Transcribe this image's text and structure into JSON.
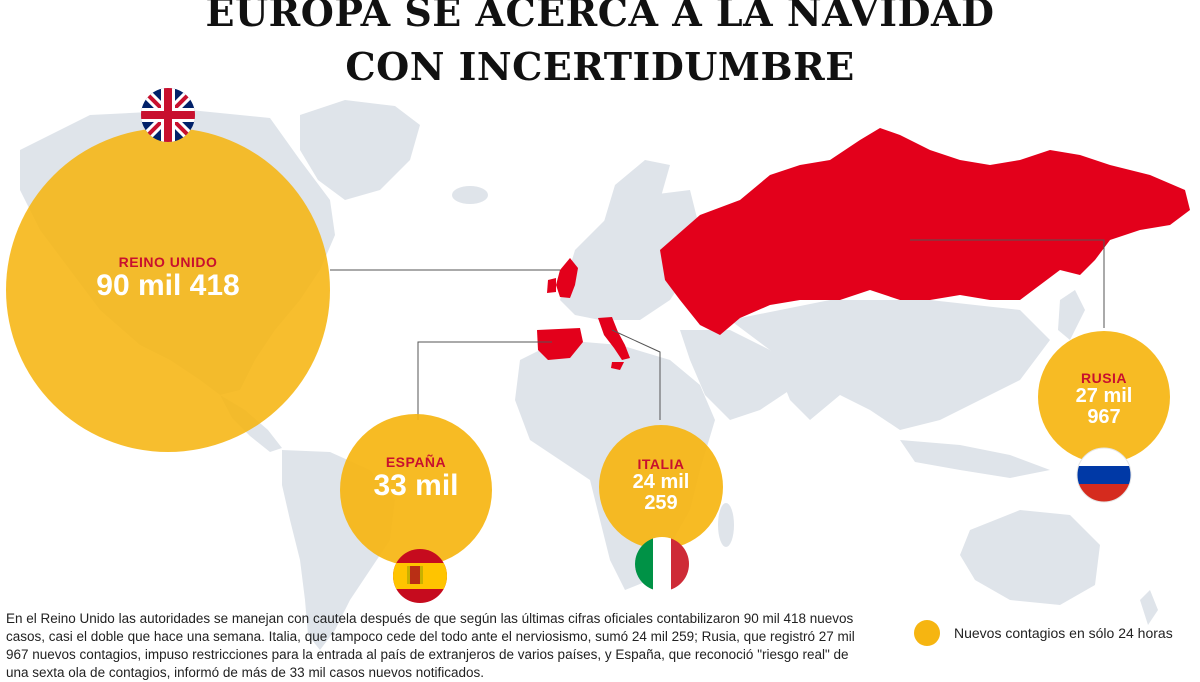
{
  "title_line1": "EUROPA SE ACERCA A LA NAVIDAD",
  "title_line2": "CON INCERTIDUMBRE",
  "colors": {
    "bubble": "#f6b511",
    "highlight": "#e3001b",
    "land": "#dfe4ea",
    "label": "#c8102e"
  },
  "bubbles": {
    "uk": {
      "country": "REINO UNIDO",
      "value": "90 mil 418",
      "flag": "uk-flag-icon"
    },
    "spain": {
      "country": "ESPAÑA",
      "value": "33 mil",
      "flag": "spain-flag-icon"
    },
    "italy": {
      "country": "ITALIA",
      "value_line1": "24 mil",
      "value_line2": "259",
      "flag": "italy-flag-icon"
    },
    "russia": {
      "country": "RUSIA",
      "value_line1": "27 mil",
      "value_line2": "967",
      "flag": "russia-flag-icon"
    }
  },
  "legend": {
    "text": "Nuevos contagios en sólo 24 horas"
  },
  "description": "En el Reino Unido las autoridades se manejan con cautela después de que según las últimas cifras oficiales contabilizaron 90 mil 418 nuevos casos, casi el doble que hace una semana. Italia, que tampoco cede del todo ante el nerviosismo, sumó 24 mil 259; Rusia, que registró 27 mil 967 nuevos contagios, impuso restricciones para la entrada al país de extranjeros de varios países, y España, que reconoció \"riesgo real\" de una sexta ola de contagios, informó de más de 33 mil casos nuevos notificados."
}
